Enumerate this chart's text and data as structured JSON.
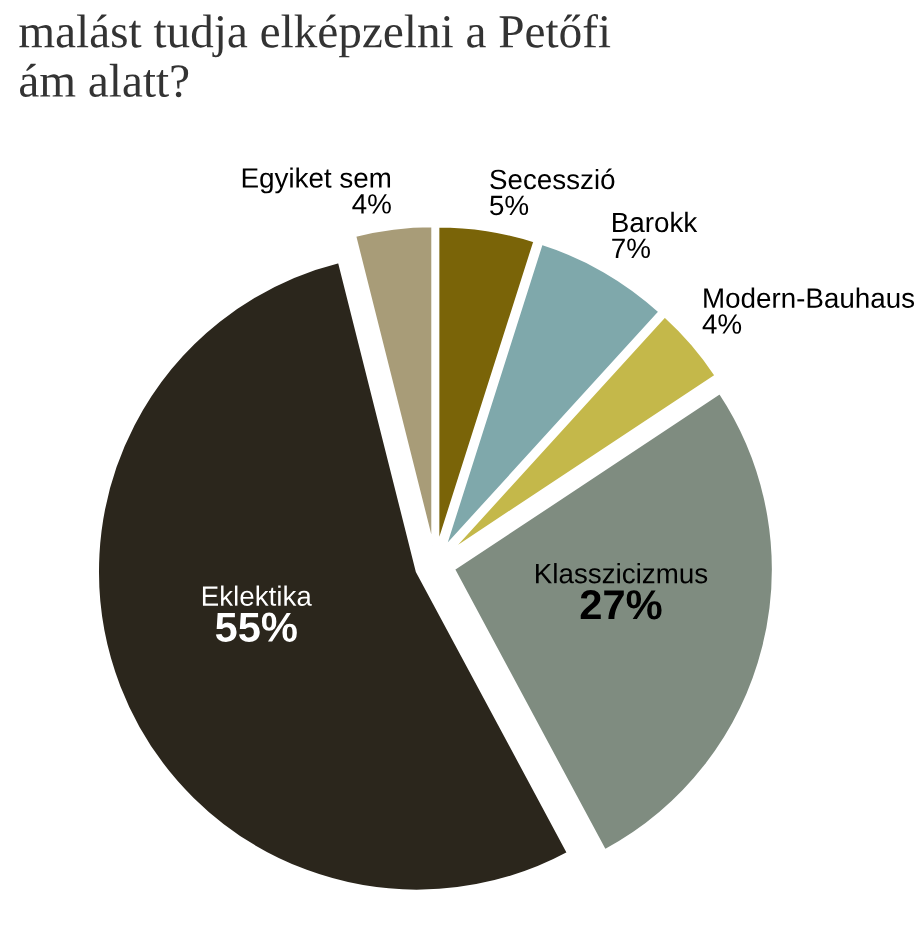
{
  "chart_data": {
    "type": "pie",
    "title": "malást tudja elképzelni a Petőfi\nám alatt?",
    "categories": [
      "Secesszió",
      "Barokk",
      "Modern-Bauhaus",
      "Klasszicizmus",
      "Eklektika",
      "Egyiket sem"
    ],
    "values": [
      5,
      7,
      4,
      27,
      55,
      4
    ],
    "value_labels": [
      "5%",
      "7%",
      "4%",
      "27%",
      "55%",
      "4%"
    ],
    "colors": [
      "#7a6408",
      "#7fa8ab",
      "#c4b84a",
      "#7f8c80",
      "#2b261c",
      "#a89c78"
    ],
    "legend": false
  }
}
